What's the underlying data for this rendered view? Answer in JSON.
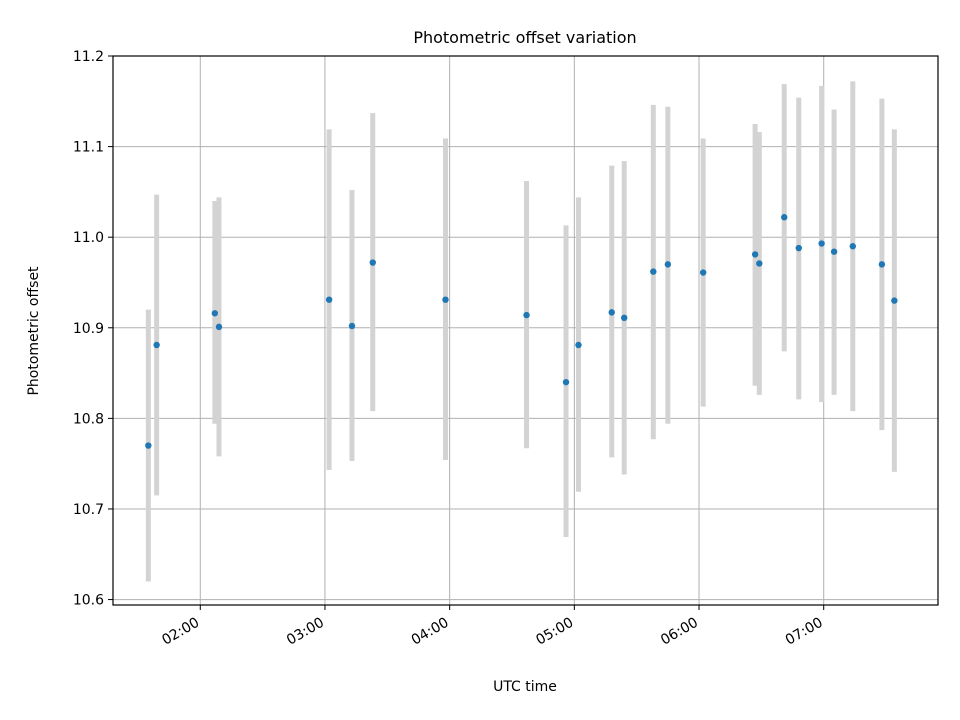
{
  "chart_data": {
    "type": "scatter",
    "title": "Photometric offset variation",
    "xlabel": "UTC time",
    "ylabel": "Photometric offset",
    "xlim": [
      "01:18",
      "07:55"
    ],
    "ylim": [
      10.594,
      11.2
    ],
    "grid": true,
    "x_ticks": [
      "02:00",
      "03:00",
      "04:00",
      "05:00",
      "06:00",
      "07:00"
    ],
    "y_ticks": [
      "10.6",
      "10.7",
      "10.8",
      "10.9",
      "11.0",
      "11.1",
      "11.2"
    ],
    "colors": {
      "marker": "#1f77b4",
      "errorbar": "#d3d3d3",
      "grid": "#b0b0b0"
    },
    "series": [
      {
        "points": [
          {
            "x": "01:35",
            "y": 10.77,
            "lo": 10.62,
            "hi": 10.92
          },
          {
            "x": "01:39",
            "y": 10.881,
            "lo": 10.715,
            "hi": 11.047
          },
          {
            "x": "02:07",
            "y": 10.916,
            "lo": 10.794,
            "hi": 11.04
          },
          {
            "x": "02:09",
            "y": 10.901,
            "lo": 10.758,
            "hi": 11.044
          },
          {
            "x": "03:02",
            "y": 10.931,
            "lo": 10.743,
            "hi": 11.119
          },
          {
            "x": "03:13",
            "y": 10.902,
            "lo": 10.753,
            "hi": 11.052
          },
          {
            "x": "03:23",
            "y": 10.972,
            "lo": 10.808,
            "hi": 11.137
          },
          {
            "x": "03:58",
            "y": 10.931,
            "lo": 10.754,
            "hi": 11.109
          },
          {
            "x": "04:37",
            "y": 10.914,
            "lo": 10.767,
            "hi": 11.062
          },
          {
            "x": "04:56",
            "y": 10.84,
            "lo": 10.669,
            "hi": 11.013
          },
          {
            "x": "05:02",
            "y": 10.881,
            "lo": 10.719,
            "hi": 11.044
          },
          {
            "x": "05:18",
            "y": 10.917,
            "lo": 10.757,
            "hi": 11.079
          },
          {
            "x": "05:24",
            "y": 10.911,
            "lo": 10.738,
            "hi": 11.084
          },
          {
            "x": "05:38",
            "y": 10.962,
            "lo": 10.777,
            "hi": 11.146
          },
          {
            "x": "05:45",
            "y": 10.97,
            "lo": 10.794,
            "hi": 11.144
          },
          {
            "x": "06:02",
            "y": 10.961,
            "lo": 10.813,
            "hi": 11.109
          },
          {
            "x": "06:27",
            "y": 10.981,
            "lo": 10.836,
            "hi": 11.125
          },
          {
            "x": "06:29",
            "y": 10.971,
            "lo": 10.826,
            "hi": 11.116
          },
          {
            "x": "06:41",
            "y": 11.022,
            "lo": 10.874,
            "hi": 11.169
          },
          {
            "x": "06:48",
            "y": 10.988,
            "lo": 10.821,
            "hi": 11.154
          },
          {
            "x": "06:59",
            "y": 10.993,
            "lo": 10.818,
            "hi": 11.167
          },
          {
            "x": "07:05",
            "y": 10.984,
            "lo": 10.826,
            "hi": 11.141
          },
          {
            "x": "07:14",
            "y": 10.99,
            "lo": 10.808,
            "hi": 11.172
          },
          {
            "x": "07:28",
            "y": 10.97,
            "lo": 10.787,
            "hi": 11.153
          },
          {
            "x": "07:34",
            "y": 10.93,
            "lo": 10.741,
            "hi": 11.119
          }
        ]
      }
    ]
  }
}
